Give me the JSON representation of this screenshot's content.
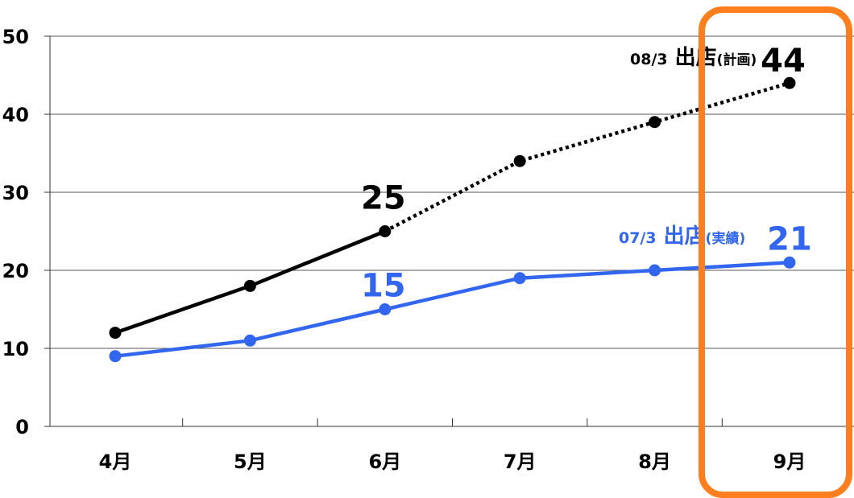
{
  "chart_data": {
    "type": "line",
    "categories": [
      "4月",
      "5月",
      "6月",
      "7月",
      "8月",
      "9月"
    ],
    "ylim": [
      0,
      50
    ],
    "yticks": [
      "0",
      "10",
      "20",
      "30",
      "40",
      "50"
    ],
    "grid": true,
    "series": [
      {
        "name": "08/3 出店(計画)",
        "name_parts": [
          "08/3",
          "出店",
          "(計画)"
        ],
        "values": [
          12,
          18,
          25,
          34,
          39,
          44
        ],
        "color": "#000000",
        "solid_until_index": 2,
        "style_after": "dotted"
      },
      {
        "name": "07/3 出店(実績)",
        "name_parts": [
          "07/3",
          "出店",
          "(実績)"
        ],
        "values": [
          9,
          11,
          15,
          19,
          20,
          21
        ],
        "color": "#3366ee",
        "solid_until_index": 5,
        "style_after": "solid"
      }
    ],
    "annotations": [
      {
        "series": 0,
        "index": 2,
        "text": "25"
      },
      {
        "series": 0,
        "index": 5,
        "text": "44"
      },
      {
        "series": 1,
        "index": 2,
        "text": "15"
      },
      {
        "series": 1,
        "index": 5,
        "text": "21"
      }
    ],
    "highlight": {
      "category": "9月",
      "color": "#ff7f1e"
    }
  }
}
